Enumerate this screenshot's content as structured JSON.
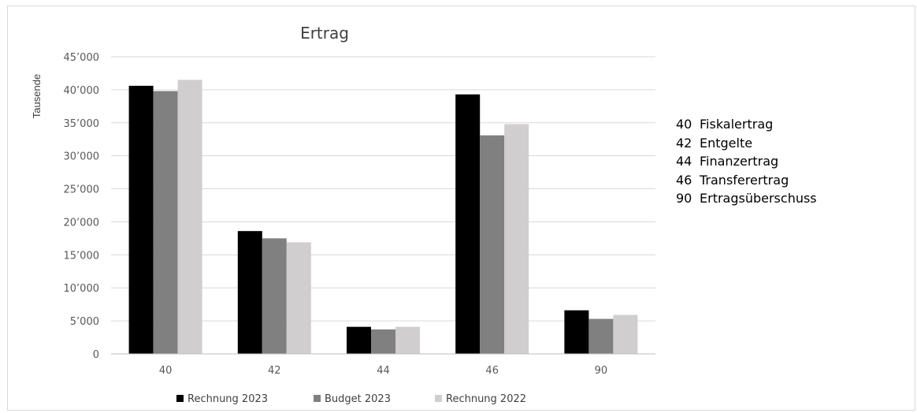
{
  "chart_data": {
    "type": "bar",
    "title": "Ertrag",
    "xlabel": "",
    "ylabel": "Tausende",
    "ylim": [
      0,
      45000
    ],
    "yticks": [
      "0",
      "5’000",
      "10’000",
      "15’000",
      "20’000",
      "25’000",
      "30’000",
      "35’000",
      "40’000",
      "45’000"
    ],
    "ytick_values": [
      0,
      5000,
      10000,
      15000,
      20000,
      25000,
      30000,
      35000,
      40000,
      45000
    ],
    "categories": [
      "40",
      "42",
      "44",
      "46",
      "90"
    ],
    "series": [
      {
        "name": "Rechnung 2023",
        "color": "#000000",
        "values": [
          40600,
          18600,
          4100,
          39300,
          6600
        ]
      },
      {
        "name": "Budget 2023",
        "color": "#808080",
        "values": [
          39800,
          17500,
          3700,
          33100,
          5300
        ]
      },
      {
        "name": "Rechnung 2022",
        "color": "#d0cece",
        "values": [
          41500,
          16900,
          4100,
          34800,
          5900
        ]
      }
    ],
    "grid": true,
    "legend_position": "bottom"
  },
  "key": [
    {
      "code": "40",
      "label": "Fiskalertrag"
    },
    {
      "code": "42",
      "label": "Entgelte"
    },
    {
      "code": "44",
      "label": "Finanzertrag"
    },
    {
      "code": "46",
      "label": "Transferertrag"
    },
    {
      "code": "90",
      "label": "Ertragsüberschuss"
    }
  ]
}
